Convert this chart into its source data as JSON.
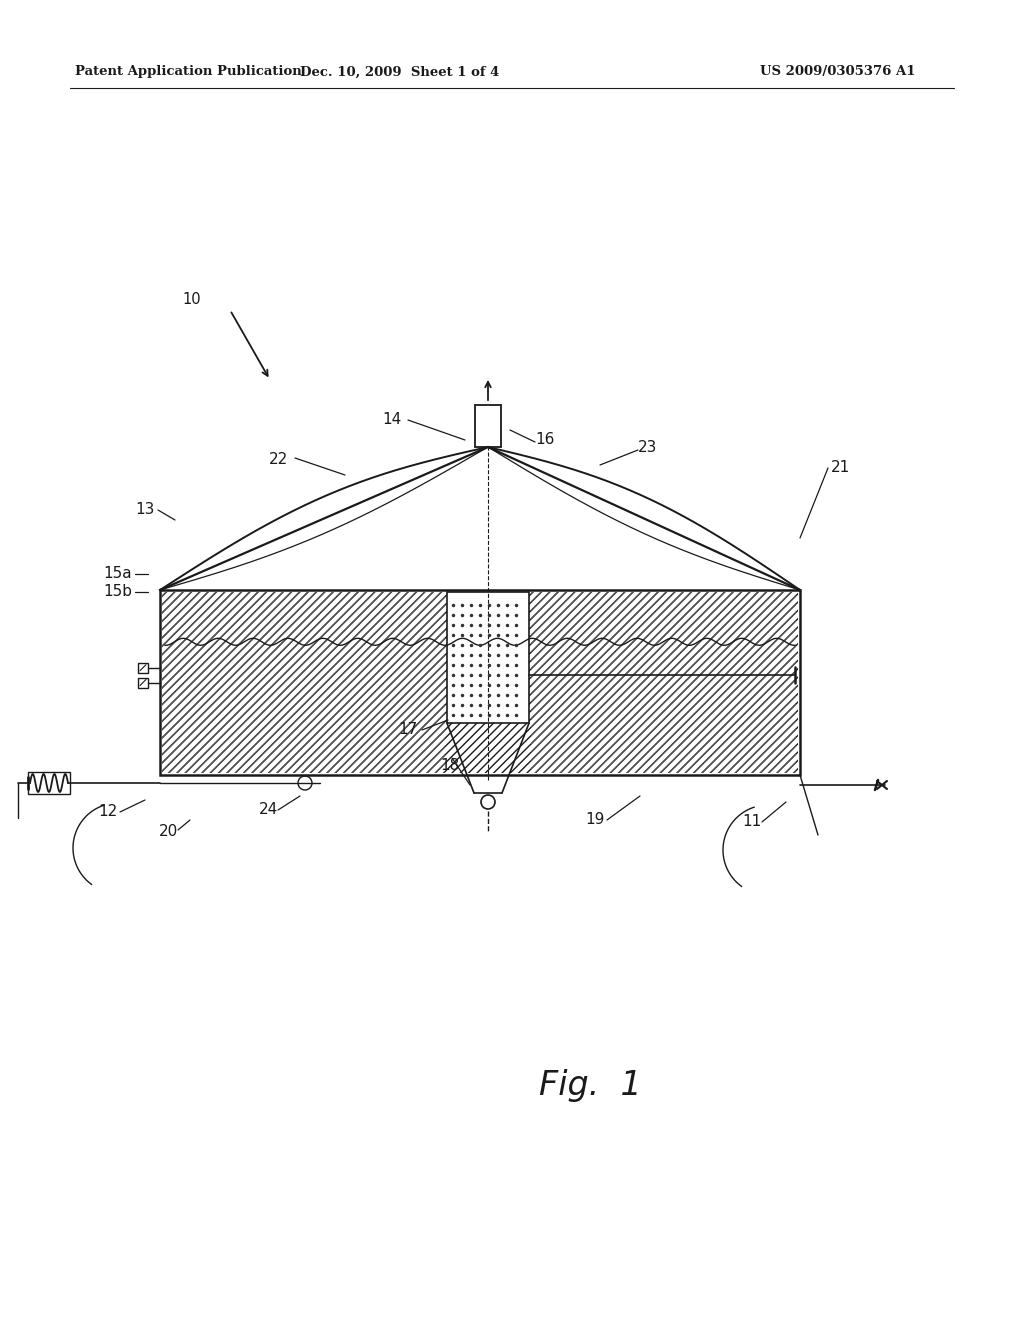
{
  "bg_color": "#ffffff",
  "line_color": "#1a1a1a",
  "header_left": "Patent Application Publication",
  "header_mid": "Dec. 10, 2009  Sheet 1 of 4",
  "header_right": "US 2009/0305376 A1",
  "fig_label": "Fig.  1"
}
